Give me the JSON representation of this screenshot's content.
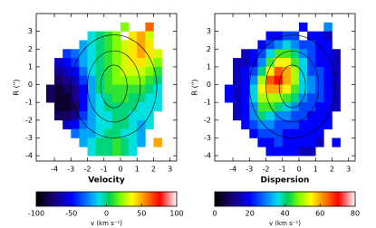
{
  "chart_data": [
    {
      "type": "heatmap",
      "xlabel": "Velocity",
      "ylabel": "R (\")",
      "xlim": [
        -5.1,
        3.4
      ],
      "ylim": [
        -4.3,
        4
      ],
      "xticks": [
        -4,
        -3,
        -2,
        -1,
        0,
        1,
        2,
        3
      ],
      "yticks": [
        -4,
        -3,
        -2,
        -1,
        0,
        1,
        2,
        3
      ],
      "x": [
        -4.25,
        -3.75,
        -3.25,
        -2.75,
        -2.25,
        -1.75,
        -1.25,
        -0.75,
        -0.25,
        0.25,
        0.75,
        1.25,
        1.75,
        2.25,
        2.75
      ],
      "y": [
        3.25,
        2.75,
        2.25,
        1.75,
        1.25,
        0.75,
        0.25,
        -0.25,
        -0.75,
        -1.25,
        -1.75,
        -2.25,
        -2.75,
        -3.25,
        -3.75
      ],
      "values": [
        [
          null,
          null,
          null,
          null,
          null,
          null,
          null,
          null,
          null,
          20,
          null,
          null,
          60,
          null,
          null
        ],
        [
          null,
          null,
          null,
          null,
          null,
          -10,
          0,
          10,
          20,
          null,
          40,
          50,
          30,
          null,
          null
        ],
        [
          null,
          null,
          null,
          null,
          -20,
          -10,
          0,
          10,
          20,
          30,
          40,
          50,
          40,
          null,
          null
        ],
        [
          null,
          null,
          -40,
          -30,
          -20,
          -10,
          0,
          10,
          20,
          30,
          40,
          50,
          40,
          30,
          null
        ],
        [
          null,
          -60,
          -50,
          -40,
          -20,
          -10,
          0,
          10,
          20,
          30,
          40,
          40,
          30,
          20,
          null
        ],
        [
          null,
          -70,
          -60,
          -50,
          -30,
          -10,
          0,
          10,
          20,
          30,
          30,
          30,
          20,
          10,
          null
        ],
        [
          null,
          -80,
          -70,
          -60,
          -40,
          -20,
          0,
          10,
          20,
          20,
          20,
          20,
          10,
          0,
          null
        ],
        [
          -80,
          -90,
          -80,
          -70,
          -50,
          -20,
          0,
          10,
          10,
          10,
          10,
          10,
          0,
          -10,
          null
        ],
        [
          -80,
          -90,
          -90,
          -70,
          -50,
          -20,
          -10,
          0,
          10,
          10,
          0,
          0,
          -10,
          -10,
          null
        ],
        [
          null,
          -90,
          -90,
          -80,
          -50,
          -20,
          -10,
          0,
          0,
          0,
          0,
          -10,
          -10,
          -10,
          null
        ],
        [
          null,
          -80,
          -80,
          -70,
          -40,
          -20,
          -10,
          -10,
          0,
          0,
          -10,
          -10,
          -10,
          null,
          null
        ],
        [
          null,
          null,
          -60,
          -50,
          -30,
          -20,
          -10,
          -10,
          0,
          0,
          -10,
          -20,
          -10,
          null,
          null
        ],
        [
          null,
          null,
          null,
          -30,
          -20,
          -20,
          -10,
          0,
          0,
          -10,
          -10,
          -20,
          null,
          null,
          null
        ],
        [
          null,
          null,
          null,
          null,
          -20,
          -10,
          0,
          0,
          10,
          0,
          -10,
          -20,
          null,
          50,
          null
        ],
        [
          null,
          null,
          null,
          null,
          null,
          -10,
          0,
          0,
          10,
          0,
          -10,
          null,
          null,
          null,
          null
        ]
      ],
      "colorbar": {
        "lim": [
          -100,
          100
        ],
        "ticks": [
          -100,
          -50,
          0,
          50,
          100
        ],
        "label": "v (km s⁻¹)"
      }
    },
    {
      "type": "heatmap",
      "xlabel": "Dispersion",
      "ylabel": "R (\")",
      "xlim": [
        -5.1,
        3.4
      ],
      "ylim": [
        -4.3,
        4
      ],
      "xticks": [
        -4,
        -3,
        -2,
        -1,
        0,
        1,
        2,
        3
      ],
      "yticks": [
        -4,
        -3,
        -2,
        -1,
        0,
        1,
        2,
        3
      ],
      "x": [
        -4.25,
        -3.75,
        -3.25,
        -2.75,
        -2.25,
        -1.75,
        -1.25,
        -0.75,
        -0.25,
        0.25,
        0.75,
        1.25,
        1.75,
        2.25,
        2.75
      ],
      "y": [
        3.25,
        2.75,
        2.25,
        1.75,
        1.25,
        0.75,
        0.25,
        -0.25,
        -0.75,
        -1.25,
        -1.75,
        -2.25,
        -2.75,
        -3.25,
        -3.75
      ],
      "values": [
        [
          null,
          null,
          null,
          null,
          null,
          null,
          null,
          null,
          null,
          20,
          null,
          null,
          30,
          null,
          null
        ],
        [
          null,
          null,
          null,
          null,
          null,
          20,
          20,
          25,
          25,
          null,
          20,
          20,
          15,
          null,
          null
        ],
        [
          null,
          null,
          null,
          null,
          20,
          25,
          30,
          35,
          30,
          25,
          25,
          20,
          20,
          null,
          null
        ],
        [
          null,
          null,
          15,
          20,
          25,
          35,
          45,
          45,
          40,
          30,
          25,
          20,
          20,
          15,
          null
        ],
        [
          null,
          15,
          15,
          20,
          30,
          45,
          55,
          55,
          45,
          35,
          25,
          20,
          20,
          15,
          null
        ],
        [
          null,
          15,
          20,
          25,
          40,
          55,
          65,
          60,
          50,
          35,
          25,
          25,
          20,
          15,
          null
        ],
        [
          null,
          15,
          20,
          30,
          50,
          65,
          70,
          60,
          50,
          35,
          30,
          25,
          20,
          15,
          null
        ],
        [
          20,
          15,
          20,
          35,
          55,
          60,
          60,
          55,
          45,
          35,
          30,
          25,
          20,
          15,
          null
        ],
        [
          20,
          15,
          20,
          35,
          50,
          50,
          50,
          45,
          40,
          30,
          25,
          25,
          20,
          15,
          null
        ],
        [
          null,
          15,
          20,
          30,
          45,
          45,
          40,
          35,
          30,
          25,
          25,
          20,
          20,
          15,
          null
        ],
        [
          null,
          15,
          20,
          30,
          40,
          35,
          30,
          30,
          25,
          25,
          20,
          20,
          20,
          null,
          null
        ],
        [
          null,
          null,
          20,
          25,
          30,
          30,
          25,
          25,
          25,
          20,
          20,
          20,
          20,
          null,
          null
        ],
        [
          null,
          null,
          null,
          20,
          25,
          25,
          25,
          20,
          20,
          20,
          20,
          20,
          null,
          null,
          null
        ],
        [
          null,
          null,
          null,
          null,
          20,
          20,
          25,
          20,
          20,
          20,
          20,
          15,
          null,
          20,
          null
        ],
        [
          null,
          null,
          null,
          null,
          null,
          20,
          20,
          20,
          20,
          15,
          15,
          null,
          null,
          null,
          null
        ]
      ],
      "colorbar": {
        "lim": [
          0,
          80
        ],
        "ticks": [
          0,
          20,
          40,
          60,
          80
        ],
        "label": "v (km s⁻¹)"
      }
    }
  ]
}
